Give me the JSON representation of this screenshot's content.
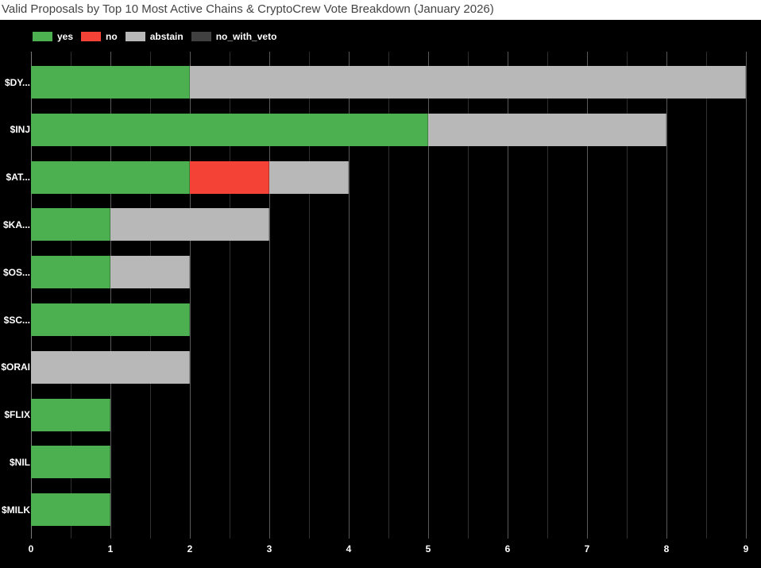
{
  "title": "Valid Proposals by Top 10 Most Active Chains & CryptoCrew Vote Breakdown (January 2026)",
  "legend": [
    {
      "label": "yes",
      "color": "#4caf50"
    },
    {
      "label": "no",
      "color": "#f44336"
    },
    {
      "label": "abstain",
      "color": "#b8b8b8"
    },
    {
      "label": "no_with_veto",
      "color": "#404040"
    }
  ],
  "x_ticks": [
    "0",
    "1",
    "2",
    "3",
    "4",
    "5",
    "6",
    "7",
    "8",
    "9"
  ],
  "chart_data": {
    "type": "bar",
    "orientation": "horizontal",
    "stacked": true,
    "title": "Valid Proposals by Top 10 Most Active Chains & CryptoCrew Vote Breakdown (January 2026)",
    "xlabel": "",
    "ylabel": "",
    "xlim": [
      0,
      9
    ],
    "grid": true,
    "legend_position": "top-left",
    "categories": [
      "$DY...",
      "$INJ",
      "$AT...",
      "$KA...",
      "$OS...",
      "$SC...",
      "$ORAI",
      "$FLIX",
      "$NIL",
      "$MILK"
    ],
    "series": [
      {
        "name": "yes",
        "color": "#4caf50",
        "values": [
          2,
          5,
          2,
          1,
          1,
          2,
          0,
          1,
          1,
          1
        ]
      },
      {
        "name": "no",
        "color": "#f44336",
        "values": [
          0,
          0,
          1,
          0,
          0,
          0,
          0,
          0,
          0,
          0
        ]
      },
      {
        "name": "abstain",
        "color": "#b8b8b8",
        "values": [
          7,
          3,
          1,
          2,
          1,
          0,
          2,
          0,
          0,
          0
        ]
      },
      {
        "name": "no_with_veto",
        "color": "#404040",
        "values": [
          0,
          0,
          0,
          0,
          0,
          0,
          0,
          0,
          0,
          0
        ]
      }
    ]
  }
}
